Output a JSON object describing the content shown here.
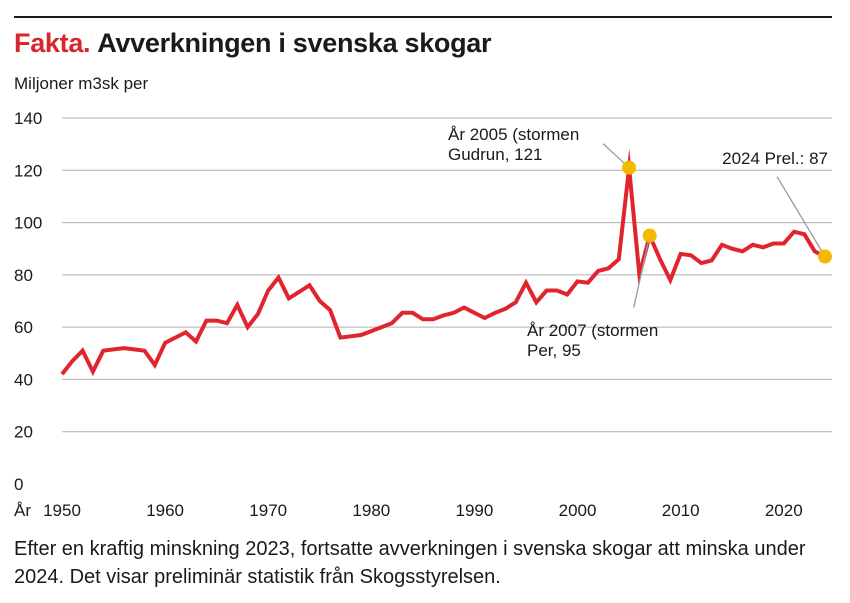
{
  "header": {
    "kicker": "Fakta.",
    "title": "Avverkningen i svenska skogar"
  },
  "caption": "Efter en kraftig minskning 2023, fortsatte avverkningen i svenska skogar att minska under 2024. Det visar preliminär statistik från Skogsstyrelsen.",
  "colors": {
    "line": "#e0252f",
    "marker": "#f5b800",
    "kicker": "#d6262e",
    "grid": "#b0b0b0",
    "leader": "#9a9a9a"
  },
  "chart_data": {
    "type": "line",
    "title": "Avverkningen i svenska skogar",
    "ylabel": "Miljoner m3sk per",
    "xlabel": "År",
    "ylim": [
      0,
      140
    ],
    "xlim": [
      1950,
      2024
    ],
    "yticks": [
      0,
      20,
      40,
      60,
      80,
      100,
      120,
      140
    ],
    "xticks": [
      1950,
      1960,
      1970,
      1980,
      1990,
      2000,
      2010,
      2020
    ],
    "x_prefix": "År",
    "grid": true,
    "series": [
      {
        "values_x": [
          1950,
          1951,
          1952,
          1953,
          1954,
          1955,
          1956,
          1957,
          1958,
          1959,
          1960,
          1961,
          1962,
          1963,
          1964,
          1965,
          1966,
          1967,
          1968,
          1969,
          1970,
          1971,
          1972,
          1973,
          1974,
          1975,
          1976,
          1977,
          1978,
          1979,
          1980,
          1981,
          1982,
          1983,
          1984,
          1985,
          1986,
          1987,
          1988,
          1989,
          1990,
          1991,
          1992,
          1993,
          1994,
          1995,
          1996,
          1997,
          1998,
          1999,
          2000,
          2001,
          2002,
          2003,
          2004,
          2005,
          2006,
          2007,
          2008,
          2009,
          2010,
          2011,
          2012,
          2013,
          2014,
          2015,
          2016,
          2017,
          2018,
          2019,
          2020,
          2021,
          2022,
          2023,
          2024
        ],
        "values_y": [
          42,
          47,
          51,
          43,
          51,
          51.5,
          52,
          51.5,
          51,
          45.5,
          54,
          56,
          58,
          54.5,
          62.5,
          62.5,
          61.5,
          68.5,
          60,
          65,
          74,
          79,
          71,
          73.5,
          76,
          70,
          66.5,
          56,
          56.5,
          57,
          58.5,
          60,
          61.5,
          65.5,
          65.5,
          63,
          63,
          64.5,
          65.5,
          67.5,
          65.5,
          63.5,
          65.5,
          67,
          69.5,
          77,
          69.5,
          74,
          74,
          72.5,
          77.5,
          77,
          81.5,
          82.5,
          86,
          121,
          80,
          95,
          86,
          78,
          88,
          87.5,
          84.5,
          85.5,
          91.5,
          90,
          89,
          91.5,
          90.5,
          92,
          92,
          96.5,
          95.5,
          89,
          87
        ]
      }
    ],
    "annotations": [
      {
        "x": 2005,
        "y": 121,
        "line1": "År 2005 (stormen",
        "line2": "Gudrun, 121"
      },
      {
        "x": 2007,
        "y": 95,
        "line1": "År 2007 (stormen",
        "line2": "Per, 95"
      },
      {
        "x": 2024,
        "y": 87,
        "line1": "2024 Prel.: 87",
        "line2": ""
      }
    ]
  }
}
